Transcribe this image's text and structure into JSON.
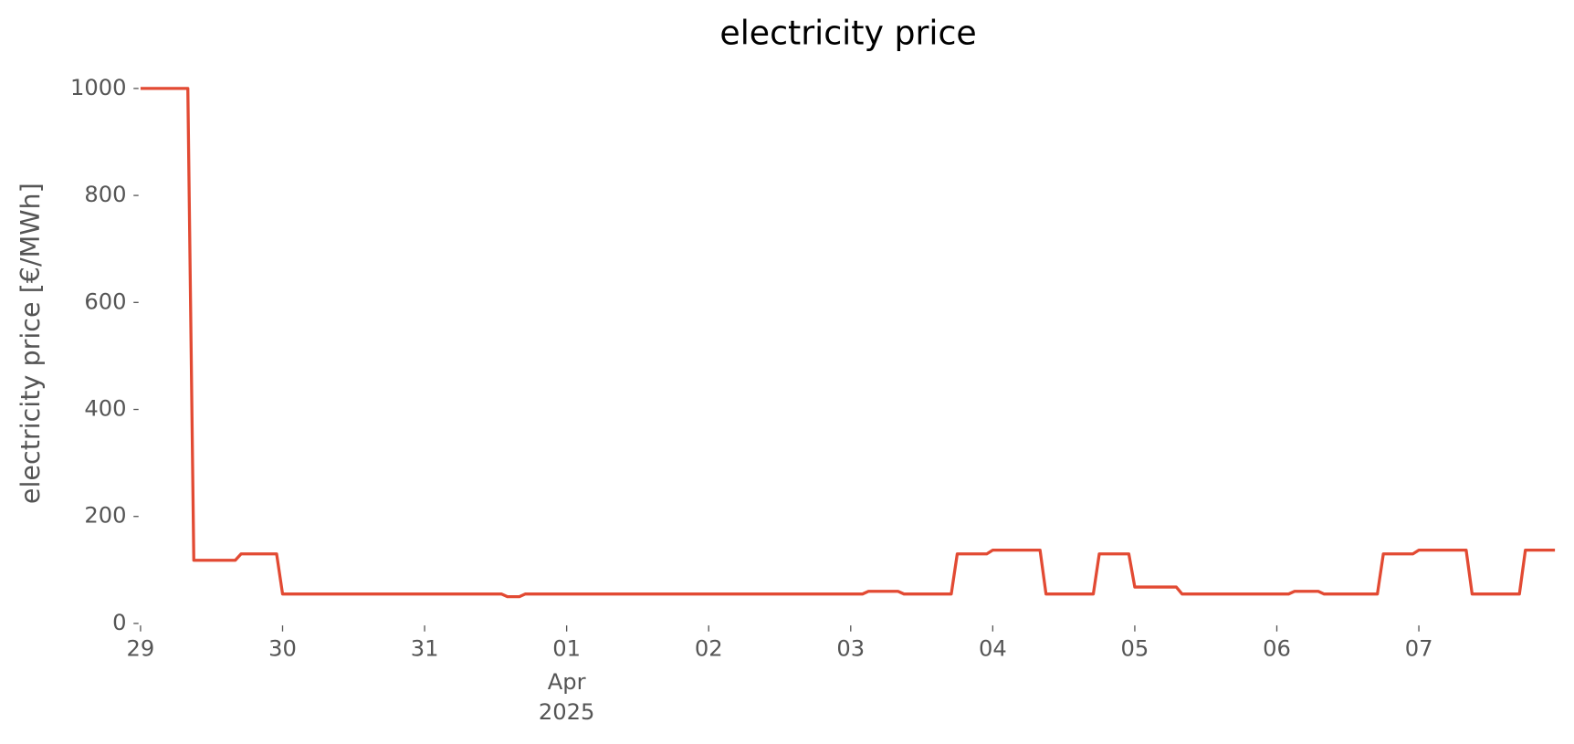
{
  "chart_data": {
    "type": "line",
    "title": "electricity price",
    "y_label": "electricity price [€/MWh]",
    "x": [
      0,
      0.333,
      0.375,
      0.667,
      0.708,
      0.958,
      1.0,
      2.542,
      2.583,
      2.667,
      2.708,
      5.083,
      5.125,
      5.333,
      5.375,
      5.708,
      5.75,
      5.958,
      6.0,
      6.333,
      6.375,
      6.708,
      6.75,
      6.958,
      7.0,
      7.292,
      7.333,
      8.083,
      8.125,
      8.292,
      8.333,
      8.708,
      8.75,
      8.958,
      9.0,
      9.333,
      9.375,
      9.708,
      9.75,
      9.958
    ],
    "series": [
      {
        "name": "electricity price",
        "color": "#E24A33",
        "values": [
          1000,
          1000,
          118,
          118,
          130,
          130,
          55,
          55,
          50,
          50,
          55,
          55,
          60,
          60,
          55,
          55,
          130,
          130,
          137,
          137,
          55,
          55,
          130,
          130,
          68,
          68,
          55,
          55,
          60,
          60,
          55,
          55,
          130,
          130,
          137,
          137,
          55,
          55,
          137,
          137
        ]
      }
    ],
    "xlim": [
      0,
      9.958
    ],
    "xticks": [
      {
        "value": 0,
        "label": "29"
      },
      {
        "value": 1,
        "label": "30"
      },
      {
        "value": 2,
        "label": "31"
      },
      {
        "value": 3,
        "label": "01",
        "sublabel": [
          "Apr",
          "2025"
        ]
      },
      {
        "value": 4,
        "label": "02"
      },
      {
        "value": 5,
        "label": "03"
      },
      {
        "value": 6,
        "label": "04"
      },
      {
        "value": 7,
        "label": "05"
      },
      {
        "value": 8,
        "label": "06"
      },
      {
        "value": 9,
        "label": "07"
      }
    ],
    "ylim": [
      0,
      1000
    ],
    "yticks": [
      0,
      200,
      400,
      600,
      800,
      1000
    ],
    "grid": false
  }
}
